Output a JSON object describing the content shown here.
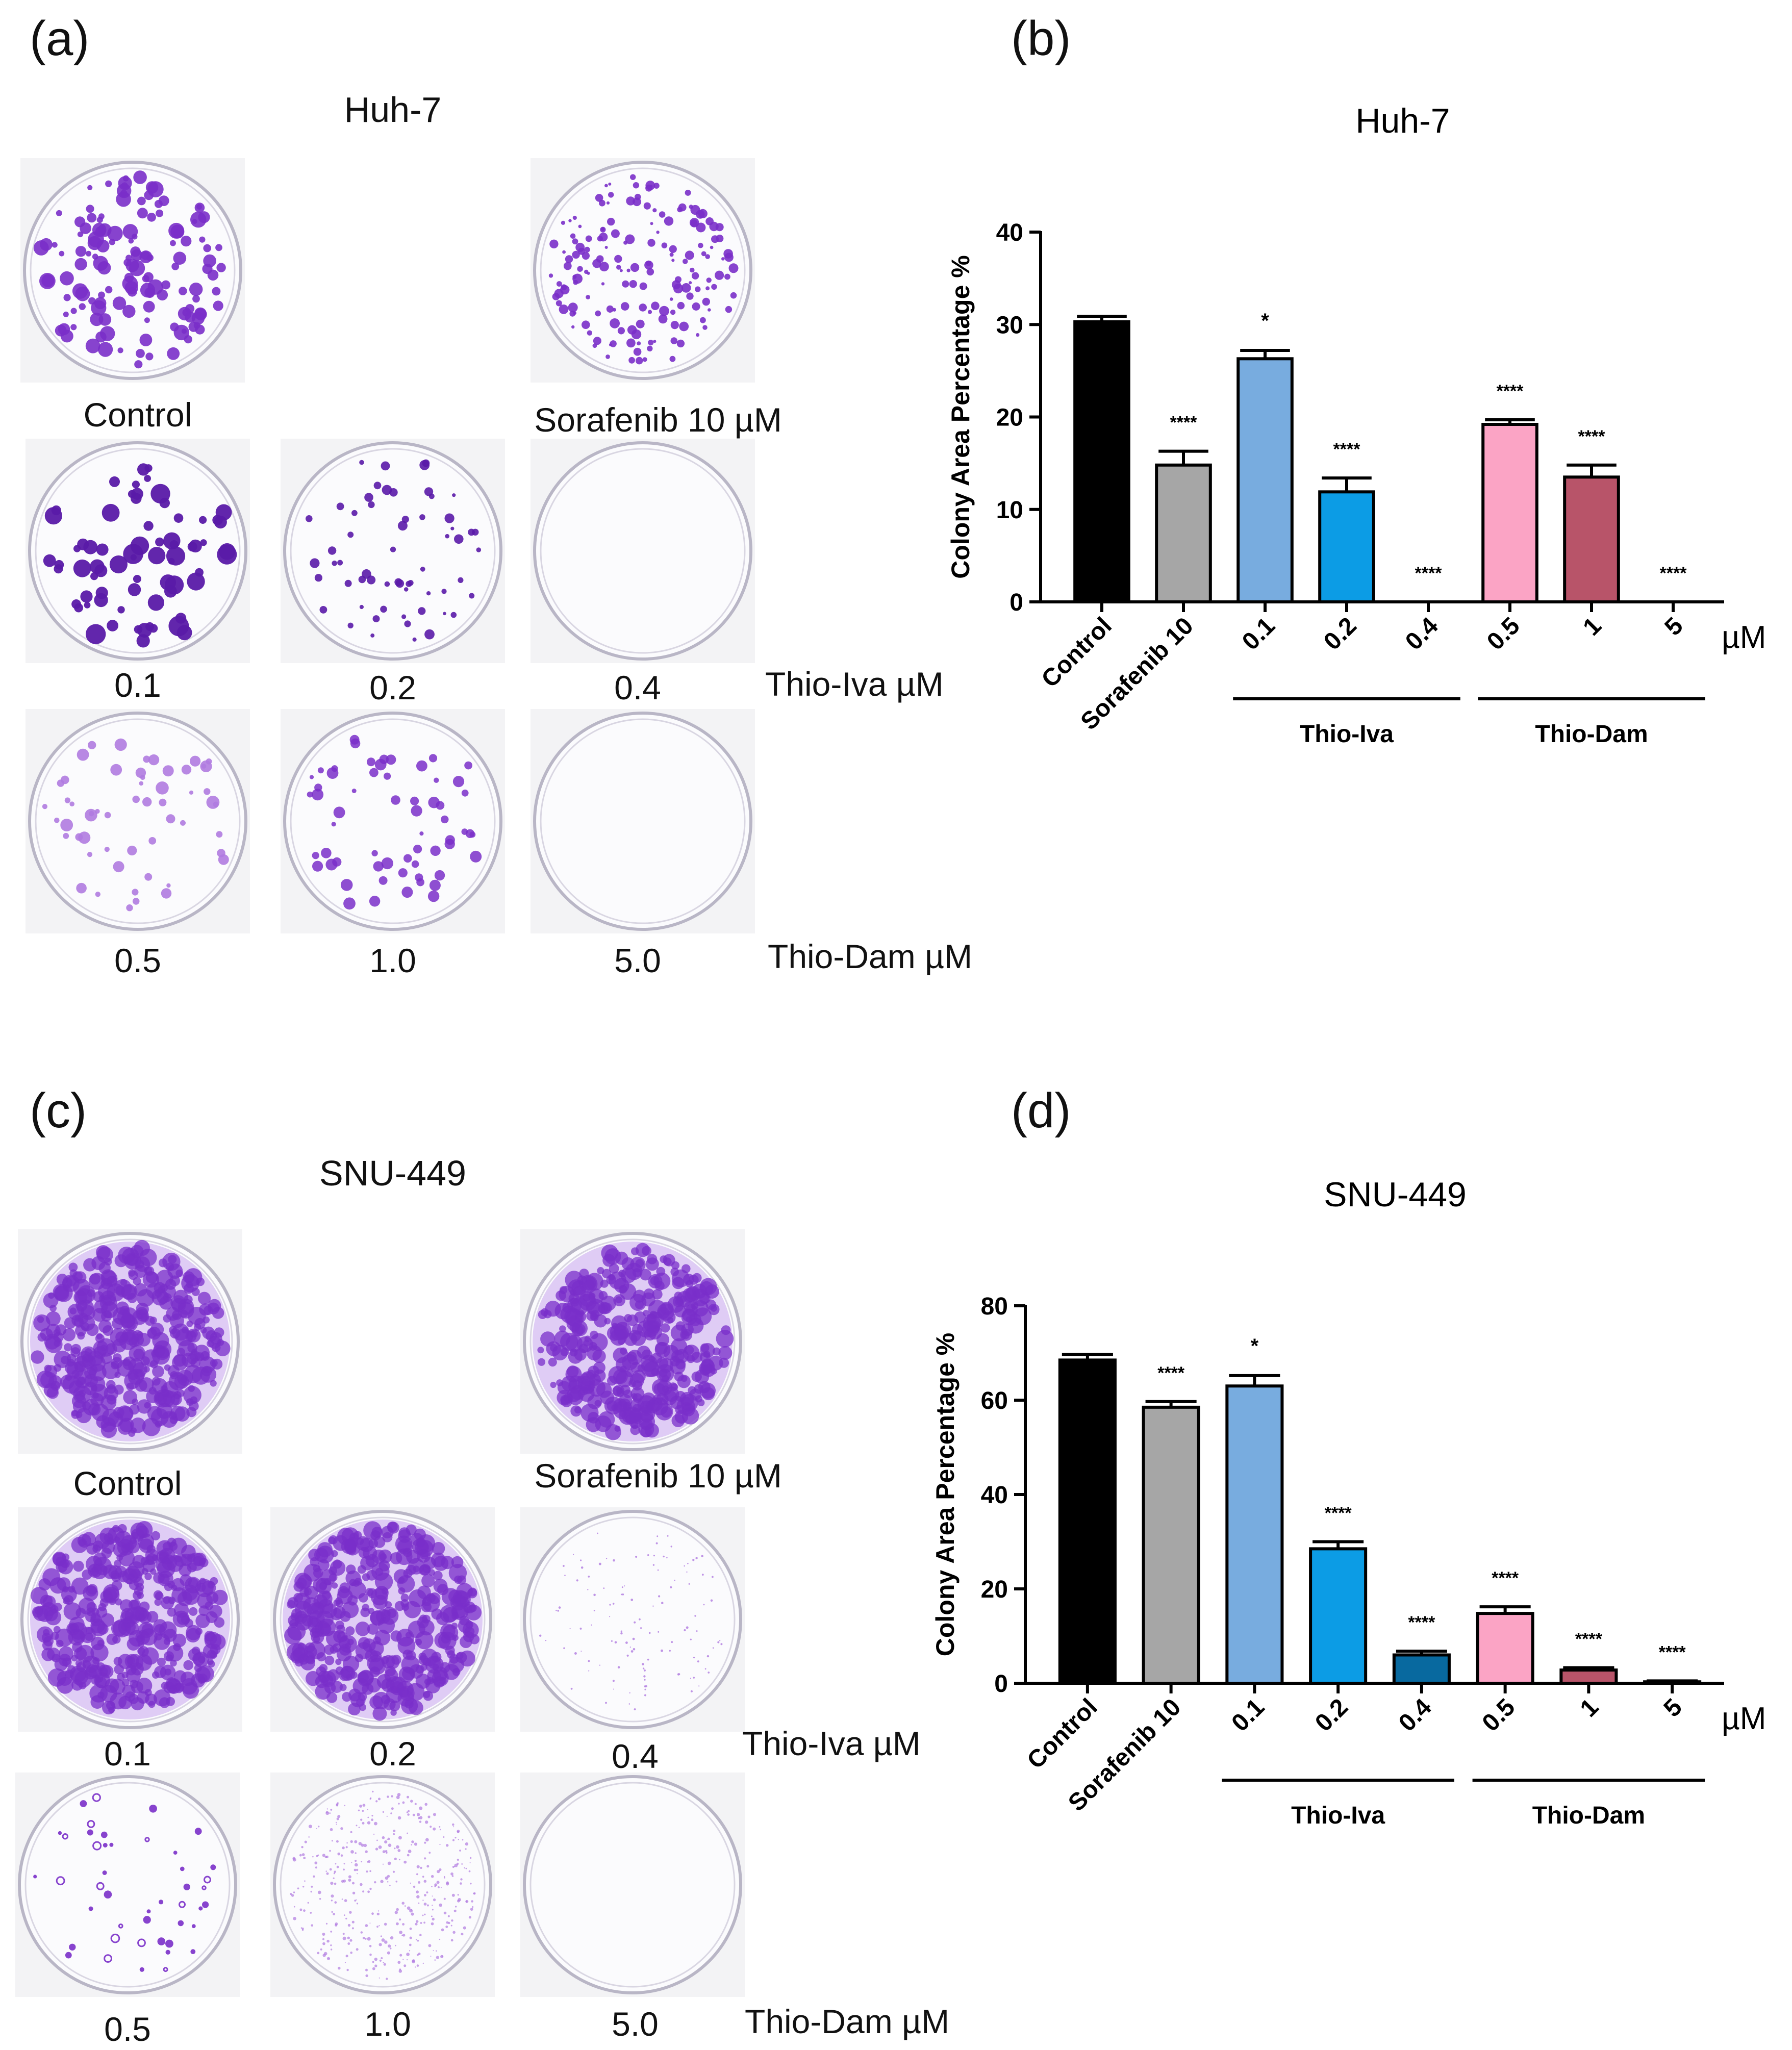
{
  "panels": {
    "a": {
      "letter": "(a)",
      "cell_line": "Huh-7",
      "dishes": {
        "control": "Control",
        "sorafenib": "Sorafenib 10 µM",
        "iva_01": "0.1",
        "iva_02": "0.2",
        "iva_04": "0.4",
        "dam_05": "0.5",
        "dam_10": "1.0",
        "dam_50": "5.0"
      },
      "row_labels": {
        "iva": "Thio-Iva µM",
        "dam": "Thio-Dam µM"
      }
    },
    "c": {
      "letter": "(c)",
      "cell_line": "SNU-449",
      "dishes": {
        "control": "Control",
        "sorafenib": "Sorafenib 10 µM",
        "iva_01": "0.1",
        "iva_02": "0.2",
        "iva_04": "0.4",
        "dam_05": "0.5",
        "dam_10": "1.0",
        "dam_50": "5.0"
      },
      "row_labels": {
        "iva": "Thio-Iva µM",
        "dam": "Thio-Dam µM"
      }
    },
    "b": {
      "letter": "(b)"
    },
    "d": {
      "letter": "(d)"
    }
  },
  "colors": {
    "stain": "#7a2fc9",
    "stain_dark": "#5a1aa8",
    "stain_light": "#b07be0"
  },
  "chart_data": [
    {
      "type": "bar",
      "title": "Huh-7",
      "ylabel": "Colony Area Percentage %",
      "unit_label": "µM",
      "categories": [
        "Control",
        "Sorafenib 10",
        "0.1",
        "0.2",
        "0.4",
        "0.5",
        "1",
        "5"
      ],
      "values": [
        30.3,
        14.8,
        26.3,
        11.9,
        0,
        19.2,
        13.5,
        0
      ],
      "errors": [
        0.6,
        1.5,
        0.9,
        1.5,
        0,
        0.5,
        1.3,
        0
      ],
      "significance": [
        "",
        "****",
        "*",
        "****",
        "****",
        "****",
        "****",
        "****"
      ],
      "colors": [
        "#000000",
        "#a6a6a6",
        "#78acdf",
        "#0c9ce5",
        "#0c9ce5",
        "#fba4c5",
        "#b85469",
        "#b85469"
      ],
      "ylim": [
        0,
        40
      ],
      "yticks": [
        0,
        10,
        20,
        30,
        40
      ],
      "groups": [
        {
          "label": "Thio-Iva",
          "from": 2,
          "to": 4
        },
        {
          "label": "Thio-Dam",
          "from": 5,
          "to": 7
        }
      ]
    },
    {
      "type": "bar",
      "title": "SNU-449",
      "ylabel": "Colony Area Percentage %",
      "unit_label": "µM",
      "categories": [
        "Control",
        "Sorafenib 10",
        "0.1",
        "0.2",
        "0.4",
        "0.5",
        "1",
        "5"
      ],
      "values": [
        68.5,
        58.5,
        63.0,
        28.5,
        6.0,
        14.8,
        2.8,
        0.3
      ],
      "errors": [
        1.2,
        1.2,
        2.2,
        1.5,
        0.8,
        1.4,
        0.5,
        0.2
      ],
      "significance": [
        "",
        "****",
        "*",
        "****",
        "****",
        "****",
        "****",
        "****"
      ],
      "colors": [
        "#000000",
        "#a6a6a6",
        "#78acdf",
        "#0c9ce5",
        "#08699f",
        "#fba4c5",
        "#b85469",
        "#b85469"
      ],
      "ylim": [
        0,
        80
      ],
      "yticks": [
        0,
        20,
        40,
        60,
        80
      ],
      "groups": [
        {
          "label": "Thio-Iva",
          "from": 2,
          "to": 4
        },
        {
          "label": "Thio-Dam",
          "from": 5,
          "to": 7
        }
      ]
    }
  ]
}
